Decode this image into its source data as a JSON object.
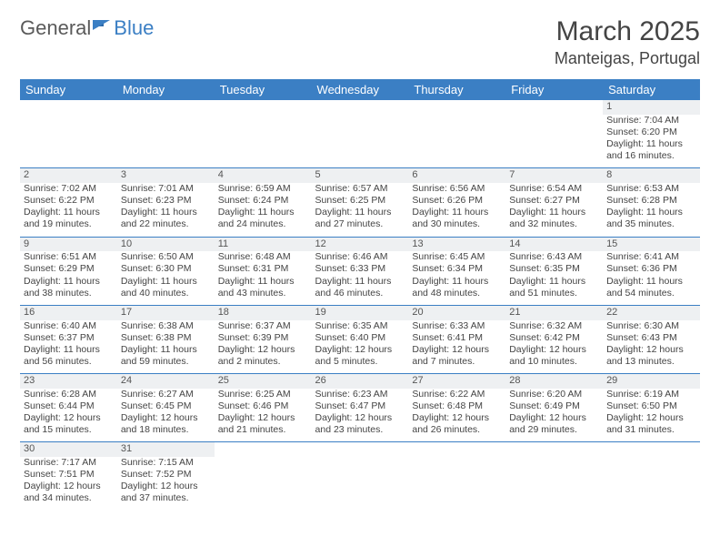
{
  "brand": {
    "part1": "General",
    "part2": "Blue"
  },
  "title": "March 2025",
  "location": "Manteigas, Portugal",
  "colors": {
    "header_bg": "#3b7fc4",
    "header_text": "#ffffff",
    "daynum_bg": "#eef0f2",
    "text": "#444444",
    "rule": "#3b7fc4"
  },
  "dayHeaders": [
    "Sunday",
    "Monday",
    "Tuesday",
    "Wednesday",
    "Thursday",
    "Friday",
    "Saturday"
  ],
  "weeks": [
    [
      null,
      null,
      null,
      null,
      null,
      null,
      {
        "n": "1",
        "sr": "7:04 AM",
        "ss": "6:20 PM",
        "d": "11 hours and 16 minutes."
      }
    ],
    [
      {
        "n": "2",
        "sr": "7:02 AM",
        "ss": "6:22 PM",
        "d": "11 hours and 19 minutes."
      },
      {
        "n": "3",
        "sr": "7:01 AM",
        "ss": "6:23 PM",
        "d": "11 hours and 22 minutes."
      },
      {
        "n": "4",
        "sr": "6:59 AM",
        "ss": "6:24 PM",
        "d": "11 hours and 24 minutes."
      },
      {
        "n": "5",
        "sr": "6:57 AM",
        "ss": "6:25 PM",
        "d": "11 hours and 27 minutes."
      },
      {
        "n": "6",
        "sr": "6:56 AM",
        "ss": "6:26 PM",
        "d": "11 hours and 30 minutes."
      },
      {
        "n": "7",
        "sr": "6:54 AM",
        "ss": "6:27 PM",
        "d": "11 hours and 32 minutes."
      },
      {
        "n": "8",
        "sr": "6:53 AM",
        "ss": "6:28 PM",
        "d": "11 hours and 35 minutes."
      }
    ],
    [
      {
        "n": "9",
        "sr": "6:51 AM",
        "ss": "6:29 PM",
        "d": "11 hours and 38 minutes."
      },
      {
        "n": "10",
        "sr": "6:50 AM",
        "ss": "6:30 PM",
        "d": "11 hours and 40 minutes."
      },
      {
        "n": "11",
        "sr": "6:48 AM",
        "ss": "6:31 PM",
        "d": "11 hours and 43 minutes."
      },
      {
        "n": "12",
        "sr": "6:46 AM",
        "ss": "6:33 PM",
        "d": "11 hours and 46 minutes."
      },
      {
        "n": "13",
        "sr": "6:45 AM",
        "ss": "6:34 PM",
        "d": "11 hours and 48 minutes."
      },
      {
        "n": "14",
        "sr": "6:43 AM",
        "ss": "6:35 PM",
        "d": "11 hours and 51 minutes."
      },
      {
        "n": "15",
        "sr": "6:41 AM",
        "ss": "6:36 PM",
        "d": "11 hours and 54 minutes."
      }
    ],
    [
      {
        "n": "16",
        "sr": "6:40 AM",
        "ss": "6:37 PM",
        "d": "11 hours and 56 minutes."
      },
      {
        "n": "17",
        "sr": "6:38 AM",
        "ss": "6:38 PM",
        "d": "11 hours and 59 minutes."
      },
      {
        "n": "18",
        "sr": "6:37 AM",
        "ss": "6:39 PM",
        "d": "12 hours and 2 minutes."
      },
      {
        "n": "19",
        "sr": "6:35 AM",
        "ss": "6:40 PM",
        "d": "12 hours and 5 minutes."
      },
      {
        "n": "20",
        "sr": "6:33 AM",
        "ss": "6:41 PM",
        "d": "12 hours and 7 minutes."
      },
      {
        "n": "21",
        "sr": "6:32 AM",
        "ss": "6:42 PM",
        "d": "12 hours and 10 minutes."
      },
      {
        "n": "22",
        "sr": "6:30 AM",
        "ss": "6:43 PM",
        "d": "12 hours and 13 minutes."
      }
    ],
    [
      {
        "n": "23",
        "sr": "6:28 AM",
        "ss": "6:44 PM",
        "d": "12 hours and 15 minutes."
      },
      {
        "n": "24",
        "sr": "6:27 AM",
        "ss": "6:45 PM",
        "d": "12 hours and 18 minutes."
      },
      {
        "n": "25",
        "sr": "6:25 AM",
        "ss": "6:46 PM",
        "d": "12 hours and 21 minutes."
      },
      {
        "n": "26",
        "sr": "6:23 AM",
        "ss": "6:47 PM",
        "d": "12 hours and 23 minutes."
      },
      {
        "n": "27",
        "sr": "6:22 AM",
        "ss": "6:48 PM",
        "d": "12 hours and 26 minutes."
      },
      {
        "n": "28",
        "sr": "6:20 AM",
        "ss": "6:49 PM",
        "d": "12 hours and 29 minutes."
      },
      {
        "n": "29",
        "sr": "6:19 AM",
        "ss": "6:50 PM",
        "d": "12 hours and 31 minutes."
      }
    ],
    [
      {
        "n": "30",
        "sr": "7:17 AM",
        "ss": "7:51 PM",
        "d": "12 hours and 34 minutes."
      },
      {
        "n": "31",
        "sr": "7:15 AM",
        "ss": "7:52 PM",
        "d": "12 hours and 37 minutes."
      },
      null,
      null,
      null,
      null,
      null
    ]
  ],
  "labels": {
    "sunrise": "Sunrise:",
    "sunset": "Sunset:",
    "daylight": "Daylight:"
  }
}
